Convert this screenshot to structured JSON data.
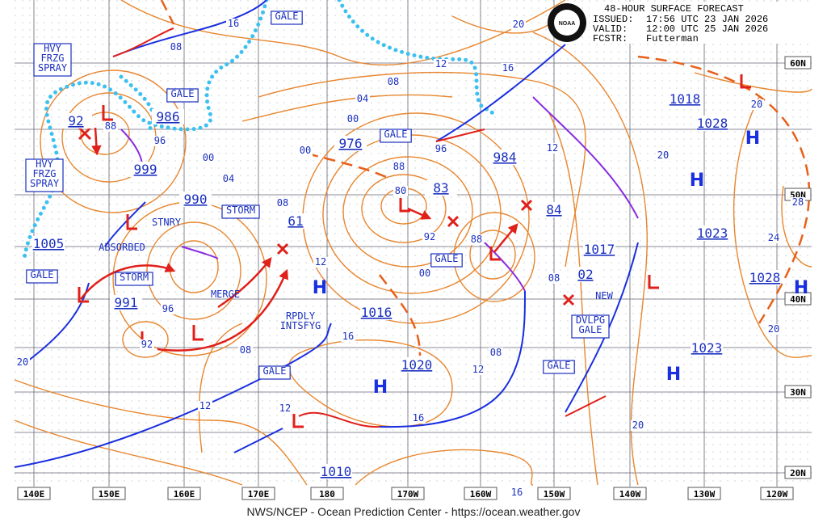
{
  "header": {
    "title": "48-HOUR SURFACE FORECAST",
    "issued_label": "ISSUED:",
    "issued": "17:56 UTC 23 JAN 2026",
    "valid_label": "VALID:",
    "valid": "12:00 UTC 25 JAN 2026",
    "fcstr_label": "FCSTR:",
    "fcstr": "Futterman",
    "logo": "NOAA"
  },
  "footer": "NWS/NCEP - Ocean Prediction Center - https://ocean.weather.gov",
  "lon_labels": [
    "140E",
    "150E",
    "160E",
    "170E",
    "180",
    "170W",
    "160W",
    "150W",
    "140W",
    "130W",
    "120W"
  ],
  "lat_labels": [
    "60N",
    "50N",
    "40N",
    "30N",
    "20N"
  ],
  "boxes": [
    [
      "GALE"
    ],
    [
      "HVY",
      "FRZG",
      "SPRAY"
    ],
    [
      "GALE"
    ],
    [
      "GALE"
    ],
    [
      "HVY",
      "FRZG",
      "SPRAY"
    ],
    [
      "STORM"
    ],
    [
      "GALE"
    ],
    [
      "GALE"
    ],
    [
      "STORM"
    ],
    [
      "DVLPG",
      "GALE"
    ],
    [
      "GALE"
    ],
    [
      "GALE"
    ]
  ],
  "pressures": [
    "986",
    "999",
    "990",
    "976",
    "83",
    "984",
    "84",
    "1018",
    "1028",
    "1023",
    "61",
    "991",
    "1005",
    "92",
    "1016",
    "1020",
    "1017",
    "02",
    "1028",
    "1023",
    "1010"
  ],
  "highs": [
    "H",
    "H",
    "H",
    "H",
    "H",
    "H"
  ],
  "annotations": [
    [
      "STNRY"
    ],
    [
      "ABSORBED"
    ],
    [
      "MERGE"
    ],
    [
      "RPDLY",
      "INTSFYG"
    ],
    [
      "NEW"
    ]
  ],
  "isobar_labels": [
    "16",
    "08",
    "20",
    "12",
    "08",
    "16",
    "04",
    "00",
    "00",
    "00",
    "04",
    "08",
    "88",
    "96",
    "88",
    "80",
    "96",
    "92",
    "88",
    "12",
    "20",
    "20",
    "28",
    "24",
    "12",
    "00",
    "08",
    "96",
    "92",
    "08",
    "16",
    "12",
    "08",
    "20",
    "12",
    "12",
    "16",
    "20",
    "20",
    "16"
  ]
}
